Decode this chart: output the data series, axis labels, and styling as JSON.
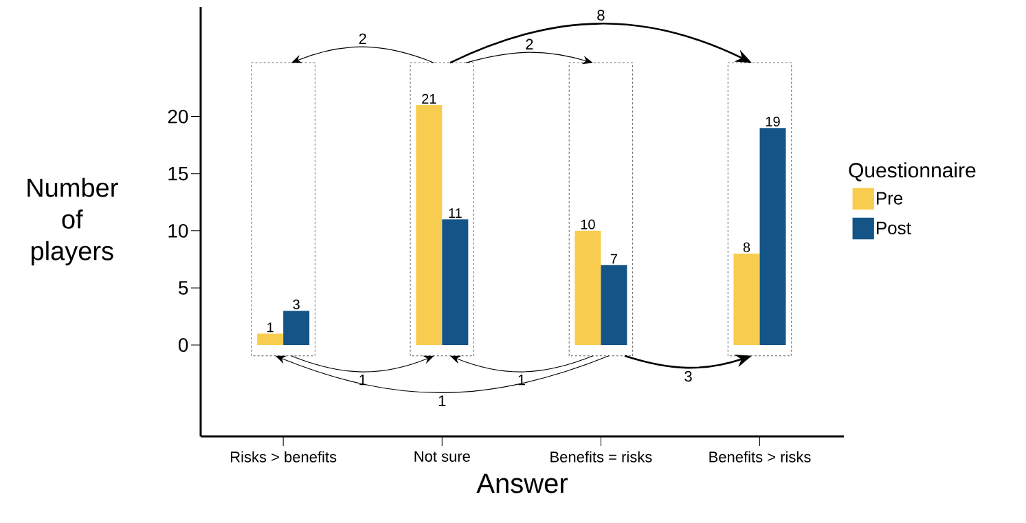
{
  "chart_data": {
    "type": "bar",
    "xlabel": "Answer",
    "ylabel": "Number of players",
    "legend_title": "Questionnaire",
    "categories": [
      "Risks > benefits",
      "Not sure",
      "Benefits = risks",
      "Benefits > risks"
    ],
    "series": [
      {
        "name": "Pre",
        "color": "#f8cd4f",
        "values": [
          1,
          21,
          10,
          8
        ]
      },
      {
        "name": "Post",
        "color": "#145487",
        "values": [
          3,
          11,
          7,
          19
        ]
      }
    ],
    "ylim": [
      -8,
      29.6
    ],
    "yticks": [
      0,
      5,
      10,
      15,
      20
    ],
    "data_labels": true,
    "legend": "right",
    "grid": false,
    "annotations": [
      "2",
      "8",
      "2",
      "1",
      "1",
      "1",
      "3"
    ]
  }
}
